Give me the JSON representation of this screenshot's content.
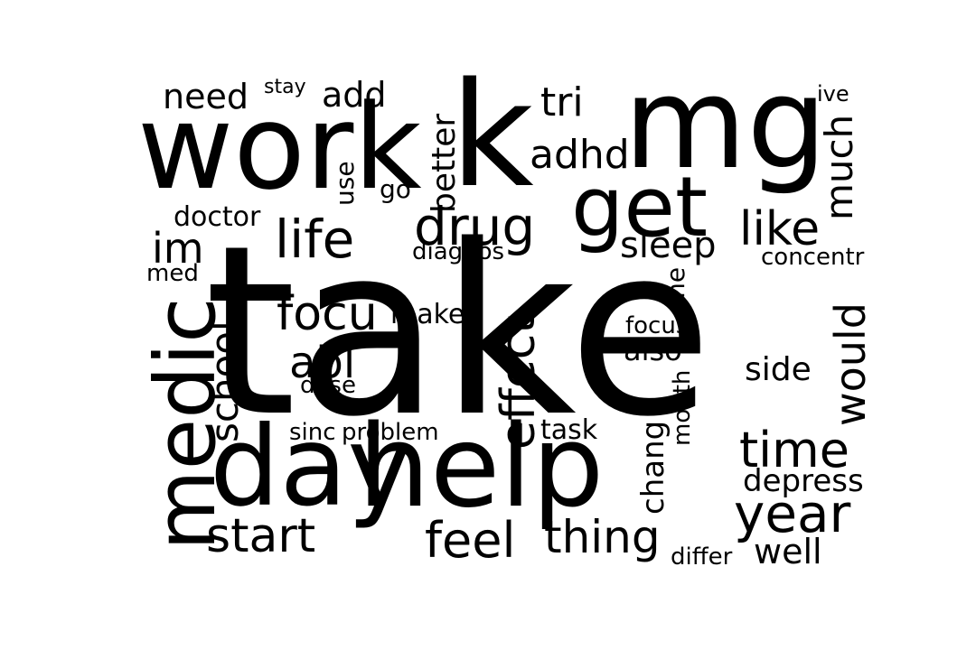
{
  "word_cloud": {
    "text_color": "#000000",
    "background_color": "#ffffff",
    "words": [
      {
        "text": "take",
        "orientation": "horizontal"
      },
      {
        "text": "work",
        "orientation": "horizontal"
      },
      {
        "text": "mg",
        "orientation": "horizontal"
      },
      {
        "text": "k",
        "orientation": "horizontal"
      },
      {
        "text": "get",
        "orientation": "horizontal"
      },
      {
        "text": "day",
        "orientation": "horizontal"
      },
      {
        "text": "help",
        "orientation": "horizontal"
      },
      {
        "text": "medic",
        "orientation": "vertical"
      },
      {
        "text": "need",
        "orientation": "horizontal"
      },
      {
        "text": "stay",
        "orientation": "horizontal"
      },
      {
        "text": "add",
        "orientation": "horizontal"
      },
      {
        "text": "tri",
        "orientation": "horizontal"
      },
      {
        "text": "ive",
        "orientation": "horizontal"
      },
      {
        "text": "adhd",
        "orientation": "horizontal"
      },
      {
        "text": "better",
        "orientation": "vertical"
      },
      {
        "text": "use",
        "orientation": "vertical"
      },
      {
        "text": "go",
        "orientation": "horizontal"
      },
      {
        "text": "much",
        "orientation": "vertical"
      },
      {
        "text": "doctor",
        "orientation": "horizontal"
      },
      {
        "text": "life",
        "orientation": "horizontal"
      },
      {
        "text": "drug",
        "orientation": "horizontal"
      },
      {
        "text": "like",
        "orientation": "horizontal"
      },
      {
        "text": "im",
        "orientation": "horizontal"
      },
      {
        "text": "diagnos",
        "orientation": "horizontal"
      },
      {
        "text": "sleep",
        "orientation": "horizontal"
      },
      {
        "text": "concentr",
        "orientation": "horizontal"
      },
      {
        "text": "med",
        "orientation": "horizontal"
      },
      {
        "text": "one",
        "orientation": "vertical"
      },
      {
        "text": "school",
        "orientation": "vertical"
      },
      {
        "text": "focu",
        "orientation": "horizontal"
      },
      {
        "text": "make",
        "orientation": "horizontal"
      },
      {
        "text": "effect",
        "orientation": "vertical"
      },
      {
        "text": "focus",
        "orientation": "horizontal"
      },
      {
        "text": "would",
        "orientation": "vertical"
      },
      {
        "text": "also",
        "orientation": "horizontal"
      },
      {
        "text": "abl",
        "orientation": "horizontal"
      },
      {
        "text": "side",
        "orientation": "horizontal"
      },
      {
        "text": "dose",
        "orientation": "horizontal"
      },
      {
        "text": "month",
        "orientation": "vertical"
      },
      {
        "text": "sinc",
        "orientation": "horizontal"
      },
      {
        "text": "problem",
        "orientation": "horizontal"
      },
      {
        "text": "task",
        "orientation": "horizontal"
      },
      {
        "text": "time",
        "orientation": "horizontal"
      },
      {
        "text": "chang",
        "orientation": "vertical"
      },
      {
        "text": "depress",
        "orientation": "horizontal"
      },
      {
        "text": "year",
        "orientation": "horizontal"
      },
      {
        "text": "start",
        "orientation": "horizontal"
      },
      {
        "text": "feel",
        "orientation": "horizontal"
      },
      {
        "text": "thing",
        "orientation": "horizontal"
      },
      {
        "text": "differ",
        "orientation": "horizontal"
      },
      {
        "text": "well",
        "orientation": "horizontal"
      }
    ]
  }
}
